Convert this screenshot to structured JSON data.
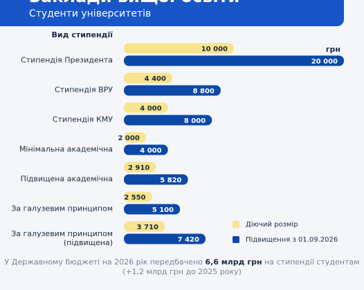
{
  "chart_data": {
    "type": "hbar",
    "title": "Заклади вищої освіти",
    "subtitle": "Студенти університетів",
    "category_header": "Вид стипендії",
    "unit": "грн",
    "categories": [
      "Стипендія Президента",
      "Стипендія ВРУ",
      "Стипендія КМУ",
      "Мінімальна академічна",
      "Підвищена академічна",
      "За галузевим принципом",
      "За галузевим принципом\n(підвищена)"
    ],
    "series": [
      {
        "name": "Діючий розмір",
        "color": "#f8e48c",
        "label_color": "#1c2a44",
        "values": [
          10000,
          4400,
          4000,
          2000,
          2910,
          2550,
          3710
        ],
        "value_labels": [
          "10 000",
          "4 400",
          "4 000",
          "2 000",
          "2 910",
          "2 550",
          "3 710"
        ]
      },
      {
        "name": "Підвищення з 01.09.2026",
        "color": "#0c48a6",
        "label_color": "#ffffff",
        "values": [
          20000,
          8800,
          8000,
          4000,
          5820,
          5100,
          7420
        ],
        "value_labels": [
          "20 000",
          "8 800",
          "8 000",
          "4 000",
          "5 820",
          "5 100",
          "7 420"
        ]
      }
    ],
    "xlim": [
      0,
      20000
    ],
    "note": [
      "У Державному бюджеті на 2026 рік передбачено ",
      "6,6 млрд грн",
      " на стипендії студентам",
      "(+1,2 млрд грн до 2025 року)"
    ]
  }
}
